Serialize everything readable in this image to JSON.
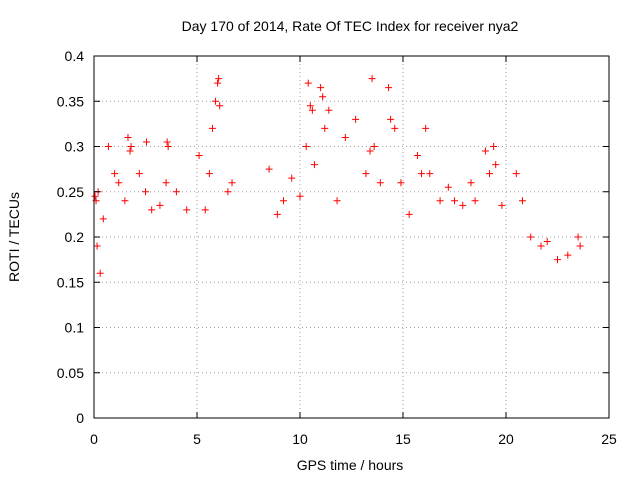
{
  "chart_data": {
    "type": "scatter",
    "title": "Day 170 of 2014, Rate Of TEC Index for receiver nya2",
    "xlabel": "GPS time / hours",
    "ylabel": "ROTI / TECUs",
    "xlim": [
      0,
      25
    ],
    "ylim": [
      0,
      0.4
    ],
    "xticks": [
      0,
      5,
      10,
      15,
      20,
      25
    ],
    "xtick_labels": [
      "0",
      "5",
      "10",
      "15",
      "20",
      "25"
    ],
    "yticks": [
      0,
      0.05,
      0.1,
      0.15,
      0.2,
      0.25,
      0.3,
      0.35,
      0.4
    ],
    "ytick_labels": [
      "0",
      "0.05",
      "0.1",
      "0.15",
      "0.2",
      "0.25",
      "0.3",
      "0.35",
      "0.4"
    ],
    "grid": true,
    "marker": "+",
    "color": "#ff0000",
    "series": [
      {
        "name": "ROTI",
        "points": [
          [
            0.05,
            0.245
          ],
          [
            0.1,
            0.24
          ],
          [
            0.15,
            0.19
          ],
          [
            0.2,
            0.25
          ],
          [
            0.3,
            0.16
          ],
          [
            0.45,
            0.22
          ],
          [
            0.7,
            0.3
          ],
          [
            1.0,
            0.27
          ],
          [
            1.2,
            0.26
          ],
          [
            1.5,
            0.24
          ],
          [
            1.65,
            0.31
          ],
          [
            1.75,
            0.295
          ],
          [
            1.8,
            0.3
          ],
          [
            2.2,
            0.27
          ],
          [
            2.5,
            0.25
          ],
          [
            2.55,
            0.305
          ],
          [
            2.8,
            0.23
          ],
          [
            3.2,
            0.235
          ],
          [
            3.5,
            0.26
          ],
          [
            3.55,
            0.305
          ],
          [
            3.6,
            0.3
          ],
          [
            4.0,
            0.25
          ],
          [
            4.5,
            0.23
          ],
          [
            5.1,
            0.29
          ],
          [
            5.4,
            0.23
          ],
          [
            5.6,
            0.27
          ],
          [
            5.75,
            0.32
          ],
          [
            5.9,
            0.35
          ],
          [
            6.0,
            0.37
          ],
          [
            6.05,
            0.375
          ],
          [
            6.1,
            0.345
          ],
          [
            6.5,
            0.25
          ],
          [
            6.7,
            0.26
          ],
          [
            8.5,
            0.275
          ],
          [
            8.9,
            0.225
          ],
          [
            9.2,
            0.24
          ],
          [
            9.6,
            0.265
          ],
          [
            10.0,
            0.245
          ],
          [
            10.3,
            0.3
          ],
          [
            10.4,
            0.37
          ],
          [
            10.5,
            0.345
          ],
          [
            10.6,
            0.34
          ],
          [
            10.7,
            0.28
          ],
          [
            11.0,
            0.365
          ],
          [
            11.1,
            0.355
          ],
          [
            11.2,
            0.32
          ],
          [
            11.4,
            0.34
          ],
          [
            11.8,
            0.24
          ],
          [
            12.2,
            0.31
          ],
          [
            12.7,
            0.33
          ],
          [
            13.2,
            0.27
          ],
          [
            13.4,
            0.295
          ],
          [
            13.5,
            0.375
          ],
          [
            13.6,
            0.3
          ],
          [
            13.9,
            0.26
          ],
          [
            14.3,
            0.365
          ],
          [
            14.4,
            0.33
          ],
          [
            14.6,
            0.32
          ],
          [
            14.9,
            0.26
          ],
          [
            15.3,
            0.225
          ],
          [
            15.7,
            0.29
          ],
          [
            15.9,
            0.27
          ],
          [
            16.1,
            0.32
          ],
          [
            16.3,
            0.27
          ],
          [
            16.8,
            0.24
          ],
          [
            17.2,
            0.255
          ],
          [
            17.5,
            0.24
          ],
          [
            17.9,
            0.235
          ],
          [
            18.3,
            0.26
          ],
          [
            18.5,
            0.24
          ],
          [
            19.0,
            0.295
          ],
          [
            19.2,
            0.27
          ],
          [
            19.4,
            0.3
          ],
          [
            19.5,
            0.28
          ],
          [
            19.8,
            0.235
          ],
          [
            20.5,
            0.27
          ],
          [
            20.8,
            0.24
          ],
          [
            21.2,
            0.2
          ],
          [
            21.7,
            0.19
          ],
          [
            22.0,
            0.195
          ],
          [
            22.5,
            0.175
          ],
          [
            23.0,
            0.18
          ],
          [
            23.5,
            0.2
          ],
          [
            23.6,
            0.19
          ]
        ]
      }
    ]
  }
}
